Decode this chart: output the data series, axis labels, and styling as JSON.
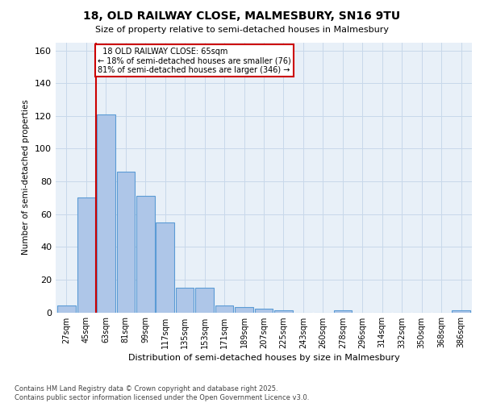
{
  "title": "18, OLD RAILWAY CLOSE, MALMESBURY, SN16 9TU",
  "subtitle": "Size of property relative to semi-detached houses in Malmesbury",
  "xlabel": "Distribution of semi-detached houses by size in Malmesbury",
  "ylabel": "Number of semi-detached properties",
  "categories": [
    "27sqm",
    "45sqm",
    "63sqm",
    "81sqm",
    "99sqm",
    "117sqm",
    "135sqm",
    "153sqm",
    "171sqm",
    "189sqm",
    "207sqm",
    "225sqm",
    "243sqm",
    "260sqm",
    "278sqm",
    "296sqm",
    "314sqm",
    "332sqm",
    "350sqm",
    "368sqm",
    "386sqm"
  ],
  "values": [
    4,
    70,
    121,
    86,
    71,
    55,
    15,
    15,
    4,
    3,
    2,
    1,
    0,
    0,
    1,
    0,
    0,
    0,
    0,
    0,
    1
  ],
  "bar_color": "#aec6e8",
  "bar_edge_color": "#5b9bd5",
  "vline_index": 2,
  "property_label": "18 OLD RAILWAY CLOSE: 65sqm",
  "smaller_pct": "18%",
  "smaller_count": 76,
  "larger_pct": "81%",
  "larger_count": 346,
  "vline_color": "#cc0000",
  "ann_edge_color": "#cc0000",
  "ylim": [
    0,
    165
  ],
  "yticks": [
    0,
    20,
    40,
    60,
    80,
    100,
    120,
    140,
    160
  ],
  "grid_color": "#c8d8ea",
  "bg_color": "#e8f0f8",
  "footer": "Contains HM Land Registry data © Crown copyright and database right 2025.\nContains public sector information licensed under the Open Government Licence v3.0."
}
